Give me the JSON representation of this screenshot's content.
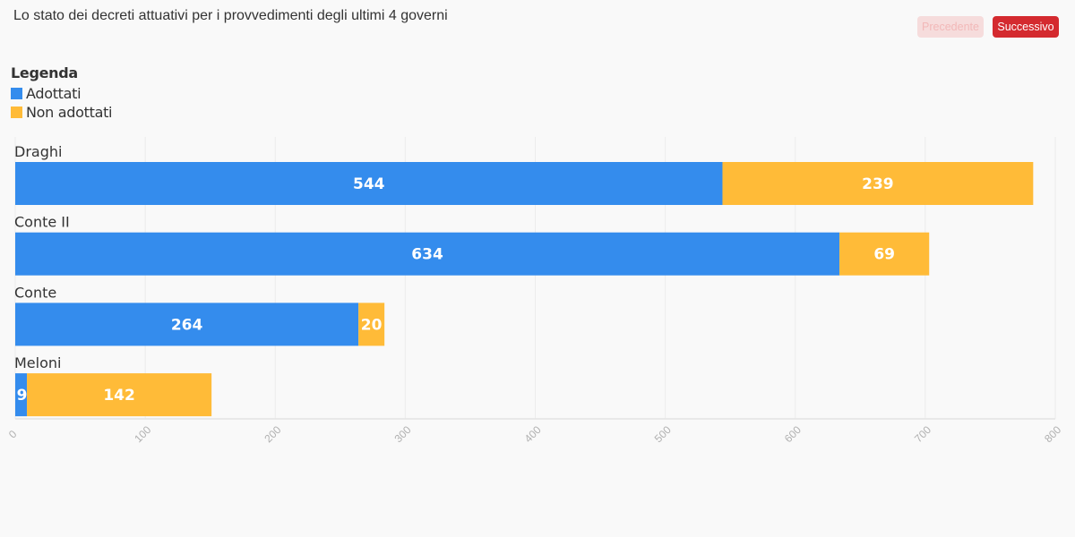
{
  "header": {
    "title": "Lo stato dei decreti attuativi per i provvedimenti degli ultimi 4 governi",
    "prev_label": "Precedente",
    "next_label": "Successivo"
  },
  "legend": {
    "title": "Legenda",
    "items": [
      {
        "label": "Adottati",
        "color": "#348ced"
      },
      {
        "label": "Non adottati",
        "color": "#ffbb38"
      }
    ]
  },
  "chart_data": {
    "type": "bar",
    "orientation": "horizontal",
    "stacked": true,
    "categories": [
      "Draghi",
      "Conte II",
      "Conte",
      "Meloni"
    ],
    "series": [
      {
        "name": "Adottati",
        "color": "#348ced",
        "values": [
          544,
          634,
          264,
          9
        ]
      },
      {
        "name": "Non adottati",
        "color": "#ffbb38",
        "values": [
          239,
          69,
          20,
          142
        ]
      }
    ],
    "title": "Lo stato dei decreti attuativi per i provvedimenti degli ultimi 4 governi",
    "xlim": [
      0,
      800
    ],
    "xticks": [
      "0",
      "100",
      "200",
      "300",
      "400",
      "500",
      "600",
      "700",
      "800"
    ],
    "grid": true,
    "legend_position": "top-left"
  }
}
